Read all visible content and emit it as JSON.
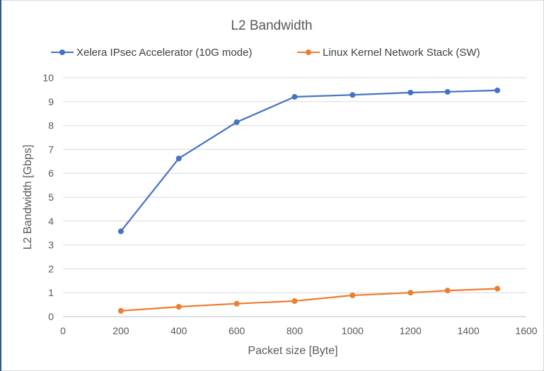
{
  "chart_data": {
    "type": "line",
    "title": "L2 Bandwidth",
    "xlabel": "Packet size [Byte]",
    "ylabel": "L2 Bandwidth [Gbps]",
    "xlim": [
      0,
      1600
    ],
    "ylim": [
      0,
      10
    ],
    "x_ticks": [
      "0",
      "200",
      "400",
      "600",
      "800",
      "1000",
      "1200",
      "1400",
      "1600"
    ],
    "y_ticks": [
      "0",
      "1",
      "2",
      "3",
      "4",
      "5",
      "6",
      "7",
      "8",
      "9",
      "10"
    ],
    "grid": "horizontal",
    "legend_position": "top",
    "series": [
      {
        "name": "Xelera IPsec Accelerator (10G mode)",
        "color": "#4472c4",
        "x": [
          200,
          400,
          600,
          800,
          1000,
          1200,
          1328,
          1500
        ],
        "y": [
          3.57,
          6.62,
          8.14,
          9.2,
          9.28,
          9.38,
          9.41,
          9.47
        ]
      },
      {
        "name": "Linux Kernel Network Stack (SW)",
        "color": "#ed7d31",
        "x": [
          200,
          400,
          600,
          800,
          1000,
          1200,
          1328,
          1500
        ],
        "y": [
          0.24,
          0.41,
          0.54,
          0.65,
          0.89,
          1.0,
          1.09,
          1.17
        ]
      }
    ]
  }
}
